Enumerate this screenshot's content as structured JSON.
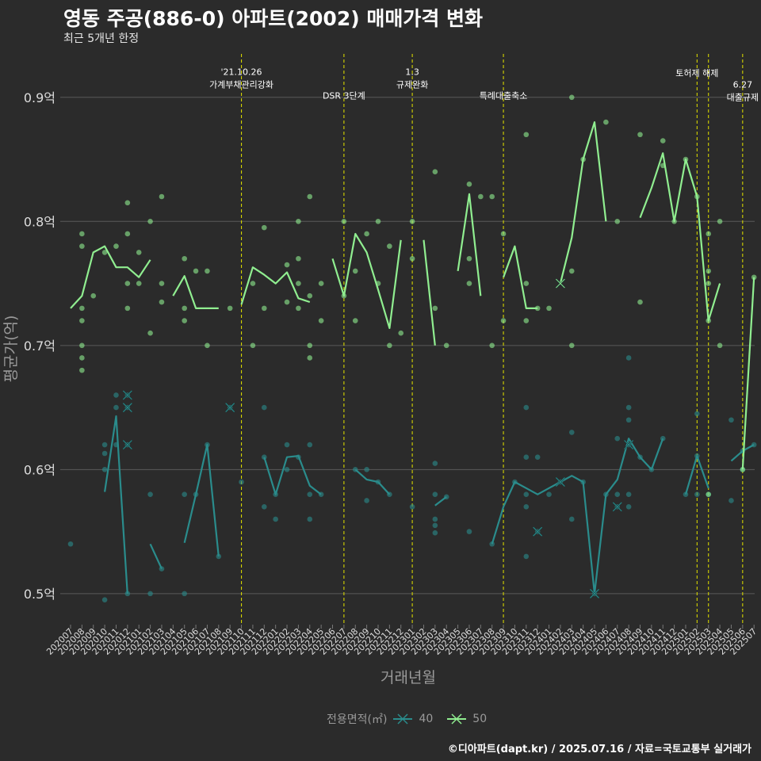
{
  "chart_data": {
    "type": "line",
    "title": "영동 주공(886-0) 아파트(2002) 매매가격 변화",
    "subtitle": "최근 5개년 한정",
    "xlabel": "거래년월",
    "ylabel": "평균가(억)",
    "caption": "©디아파트(dapt.kr) / 2025.07.16 / 자료=국토교통부 실거래가",
    "legend_title": "전용면적(㎡)",
    "legend_position": "bottom",
    "grid": true,
    "ylim": [
      0.475,
      0.935
    ],
    "y_ticks": [
      0.5,
      0.6,
      0.7,
      0.8,
      0.9
    ],
    "y_tick_labels": [
      "0.5억",
      "0.6억",
      "0.7억",
      "0.8억",
      "0.9억"
    ],
    "categories": [
      "202007",
      "202008",
      "202009",
      "202010",
      "202011",
      "202012",
      "202101",
      "202102",
      "202103",
      "202104",
      "202105",
      "202106",
      "202107",
      "202108",
      "202109",
      "202110",
      "202111",
      "202112",
      "202201",
      "202202",
      "202203",
      "202204",
      "202205",
      "202206",
      "202207",
      "202208",
      "202209",
      "202210",
      "202211",
      "202212",
      "202301",
      "202302",
      "202303",
      "202304",
      "202305",
      "202306",
      "202307",
      "202308",
      "202309",
      "202310",
      "202311",
      "202312",
      "202401",
      "202402",
      "202403",
      "202404",
      "202405",
      "202406",
      "202407",
      "202408",
      "202409",
      "202410",
      "202411",
      "202412",
      "202501",
      "202502",
      "202503",
      "202504",
      "202505",
      "202506",
      "202507"
    ],
    "series": [
      {
        "name": "40",
        "color": "#2a8c8c",
        "values": [
          0.54,
          null,
          null,
          0.582,
          0.643,
          0.5,
          null,
          0.54,
          0.52,
          null,
          0.541,
          0.58,
          0.62,
          0.53,
          null,
          0.59,
          null,
          0.61,
          0.58,
          0.61,
          0.611,
          0.587,
          0.58,
          null,
          null,
          0.6,
          0.592,
          0.59,
          0.58,
          null,
          0.57,
          null,
          0.571,
          0.578,
          null,
          0.55,
          null,
          0.54,
          0.57,
          0.59,
          0.585,
          0.58,
          0.585,
          0.59,
          0.595,
          0.59,
          0.5,
          0.58,
          0.592,
          0.625,
          0.61,
          0.6,
          0.625,
          null,
          0.58,
          0.611,
          0.585,
          null,
          0.607,
          0.615,
          0.62
        ],
        "points": [
          [
            "202007",
            0.54
          ],
          [
            "202010",
            0.62
          ],
          [
            "202010",
            0.613
          ],
          [
            "202010",
            0.6
          ],
          [
            "202010",
            0.495
          ],
          [
            "202011",
            0.66
          ],
          [
            "202011",
            0.65
          ],
          [
            "202011",
            0.62
          ],
          [
            "202012",
            0.66
          ],
          [
            "202012",
            0.65
          ],
          [
            "202012",
            0.62
          ],
          [
            "202012",
            0.5
          ],
          [
            "202102",
            0.58
          ],
          [
            "202102",
            0.5
          ],
          [
            "202103",
            0.52
          ],
          [
            "202105",
            0.58
          ],
          [
            "202105",
            0.5
          ],
          [
            "202106",
            0.58
          ],
          [
            "202107",
            0.62
          ],
          [
            "202108",
            0.53
          ],
          [
            "202109",
            0.65
          ],
          [
            "202110",
            0.59
          ],
          [
            "202112",
            0.65
          ],
          [
            "202112",
            0.61
          ],
          [
            "202112",
            0.57
          ],
          [
            "202201",
            0.58
          ],
          [
            "202201",
            0.56
          ],
          [
            "202202",
            0.62
          ],
          [
            "202202",
            0.6
          ],
          [
            "202203",
            0.61
          ],
          [
            "202204",
            0.62
          ],
          [
            "202204",
            0.58
          ],
          [
            "202204",
            0.56
          ],
          [
            "202205",
            0.58
          ],
          [
            "202208",
            0.6
          ],
          [
            "202209",
            0.6
          ],
          [
            "202209",
            0.575
          ],
          [
            "202210",
            0.59
          ],
          [
            "202211",
            0.58
          ],
          [
            "202301",
            0.57
          ],
          [
            "202303",
            0.605
          ],
          [
            "202303",
            0.58
          ],
          [
            "202303",
            0.56
          ],
          [
            "202303",
            0.555
          ],
          [
            "202303",
            0.549
          ],
          [
            "202304",
            0.578
          ],
          [
            "202306",
            0.55
          ],
          [
            "202308",
            0.54
          ],
          [
            "202310",
            0.59
          ],
          [
            "202311",
            0.65
          ],
          [
            "202311",
            0.61
          ],
          [
            "202311",
            0.58
          ],
          [
            "202311",
            0.57
          ],
          [
            "202311",
            0.53
          ],
          [
            "202312",
            0.61
          ],
          [
            "202312",
            0.55
          ],
          [
            "202401",
            0.58
          ],
          [
            "202402",
            0.59
          ],
          [
            "202403",
            0.63
          ],
          [
            "202403",
            0.56
          ],
          [
            "202404",
            0.59
          ],
          [
            "202405",
            0.5
          ],
          [
            "202406",
            0.58
          ],
          [
            "202407",
            0.625
          ],
          [
            "202407",
            0.58
          ],
          [
            "202407",
            0.57
          ],
          [
            "202408",
            0.69
          ],
          [
            "202408",
            0.65
          ],
          [
            "202408",
            0.64
          ],
          [
            "202408",
            0.62
          ],
          [
            "202408",
            0.58
          ],
          [
            "202408",
            0.57
          ],
          [
            "202409",
            0.61
          ],
          [
            "202410",
            0.6
          ],
          [
            "202411",
            0.625
          ],
          [
            "202501",
            0.58
          ],
          [
            "202502",
            0.645
          ],
          [
            "202502",
            0.611
          ],
          [
            "202502",
            0.58
          ],
          [
            "202503",
            0.58
          ],
          [
            "202505",
            0.64
          ],
          [
            "202505",
            0.575
          ],
          [
            "202506",
            0.615
          ],
          [
            "202506",
            0.6
          ],
          [
            "202507",
            0.62
          ]
        ],
        "crosses": [
          [
            "202012",
            0.66
          ],
          [
            "202012",
            0.65
          ],
          [
            "202012",
            0.62
          ],
          [
            "202109",
            0.65
          ],
          [
            "202312",
            0.55
          ],
          [
            "202402",
            0.59
          ],
          [
            "202405",
            0.5
          ],
          [
            "202407",
            0.57
          ],
          [
            "202408",
            0.62
          ]
        ]
      },
      {
        "name": "50",
        "color": "#90ee90",
        "values": [
          0.73,
          0.74,
          0.775,
          0.78,
          0.763,
          0.763,
          0.755,
          0.769,
          null,
          0.74,
          0.756,
          0.73,
          0.73,
          0.73,
          null,
          0.733,
          0.763,
          0.757,
          0.75,
          0.759,
          0.738,
          0.735,
          null,
          0.77,
          0.74,
          0.79,
          0.775,
          0.745,
          0.714,
          0.785,
          null,
          0.785,
          0.7,
          null,
          0.76,
          0.822,
          0.74,
          null,
          0.755,
          0.78,
          0.73,
          0.73,
          null,
          0.75,
          0.787,
          0.85,
          0.88,
          0.8,
          null,
          null,
          0.803,
          0.827,
          0.855,
          0.8,
          0.85,
          0.82,
          0.72,
          0.75,
          null,
          0.6,
          0.755
        ],
        "points": [
          [
            "202008",
            0.79
          ],
          [
            "202008",
            0.78
          ],
          [
            "202008",
            0.73
          ],
          [
            "202008",
            0.72
          ],
          [
            "202008",
            0.7
          ],
          [
            "202008",
            0.69
          ],
          [
            "202008",
            0.68
          ],
          [
            "202009",
            0.74
          ],
          [
            "202010",
            0.775
          ],
          [
            "202011",
            0.78
          ],
          [
            "202012",
            0.815
          ],
          [
            "202012",
            0.79
          ],
          [
            "202012",
            0.75
          ],
          [
            "202012",
            0.73
          ],
          [
            "202101",
            0.775
          ],
          [
            "202101",
            0.75
          ],
          [
            "202102",
            0.8
          ],
          [
            "202102",
            0.71
          ],
          [
            "202103",
            0.82
          ],
          [
            "202103",
            0.75
          ],
          [
            "202103",
            0.735
          ],
          [
            "202105",
            0.77
          ],
          [
            "202105",
            0.73
          ],
          [
            "202105",
            0.72
          ],
          [
            "202106",
            0.76
          ],
          [
            "202107",
            0.76
          ],
          [
            "202107",
            0.7
          ],
          [
            "202109",
            0.73
          ],
          [
            "202111",
            0.75
          ],
          [
            "202111",
            0.7
          ],
          [
            "202112",
            0.795
          ],
          [
            "202112",
            0.73
          ],
          [
            "202202",
            0.765
          ],
          [
            "202202",
            0.735
          ],
          [
            "202203",
            0.8
          ],
          [
            "202203",
            0.77
          ],
          [
            "202203",
            0.75
          ],
          [
            "202203",
            0.73
          ],
          [
            "202204",
            0.82
          ],
          [
            "202204",
            0.74
          ],
          [
            "202204",
            0.7
          ],
          [
            "202204",
            0.69
          ],
          [
            "202205",
            0.75
          ],
          [
            "202205",
            0.72
          ],
          [
            "202207",
            0.8
          ],
          [
            "202207",
            0.74
          ],
          [
            "202208",
            0.76
          ],
          [
            "202208",
            0.72
          ],
          [
            "202209",
            0.79
          ],
          [
            "202210",
            0.8
          ],
          [
            "202210",
            0.75
          ],
          [
            "202211",
            0.78
          ],
          [
            "202211",
            0.7
          ],
          [
            "202212",
            0.71
          ],
          [
            "202301",
            0.8
          ],
          [
            "202301",
            0.77
          ],
          [
            "202303",
            0.84
          ],
          [
            "202303",
            0.73
          ],
          [
            "202304",
            0.7
          ],
          [
            "202306",
            0.83
          ],
          [
            "202306",
            0.77
          ],
          [
            "202306",
            0.75
          ],
          [
            "202307",
            0.82
          ],
          [
            "202308",
            0.82
          ],
          [
            "202308",
            0.7
          ],
          [
            "202309",
            0.79
          ],
          [
            "202309",
            0.72
          ],
          [
            "202311",
            0.87
          ],
          [
            "202311",
            0.75
          ],
          [
            "202311",
            0.72
          ],
          [
            "202312",
            0.73
          ],
          [
            "202401",
            0.73
          ],
          [
            "202403",
            0.9
          ],
          [
            "202403",
            0.76
          ],
          [
            "202403",
            0.7
          ],
          [
            "202404",
            0.85
          ],
          [
            "202406",
            0.88
          ],
          [
            "202407",
            0.8
          ],
          [
            "202409",
            0.87
          ],
          [
            "202409",
            0.735
          ],
          [
            "202411",
            0.865
          ],
          [
            "202411",
            0.845
          ],
          [
            "202412",
            0.8
          ],
          [
            "202501",
            0.85
          ],
          [
            "202502",
            0.82
          ],
          [
            "202503",
            0.79
          ],
          [
            "202503",
            0.76
          ],
          [
            "202503",
            0.75
          ],
          [
            "202503",
            0.72
          ],
          [
            "202503",
            0.58
          ],
          [
            "202504",
            0.8
          ],
          [
            "202504",
            0.7
          ],
          [
            "202506",
            0.6
          ],
          [
            "202507",
            0.755
          ]
        ],
        "crosses": [
          [
            "202402",
            0.75
          ]
        ]
      }
    ],
    "annotations": [
      {
        "x": "202110",
        "lines": [
          "'21.10.26",
          "가계부채관리강화"
        ],
        "y": 0.918
      },
      {
        "x": "202207",
        "lines": [
          "DSR 3단계"
        ],
        "y": 0.899
      },
      {
        "x": "202301",
        "lines": [
          "1.3",
          "규제완화"
        ],
        "y": 0.918
      },
      {
        "x": "202309",
        "lines": [
          "특례대출축소"
        ],
        "y": 0.899
      },
      {
        "x": "202502",
        "lines": [
          "토허제 해제"
        ],
        "y": 0.917
      },
      {
        "x": "202503",
        "lines": [],
        "y": 0.9
      },
      {
        "x": "202506",
        "lines": [
          "6.27",
          "대출규제"
        ],
        "y": 0.908
      }
    ]
  }
}
